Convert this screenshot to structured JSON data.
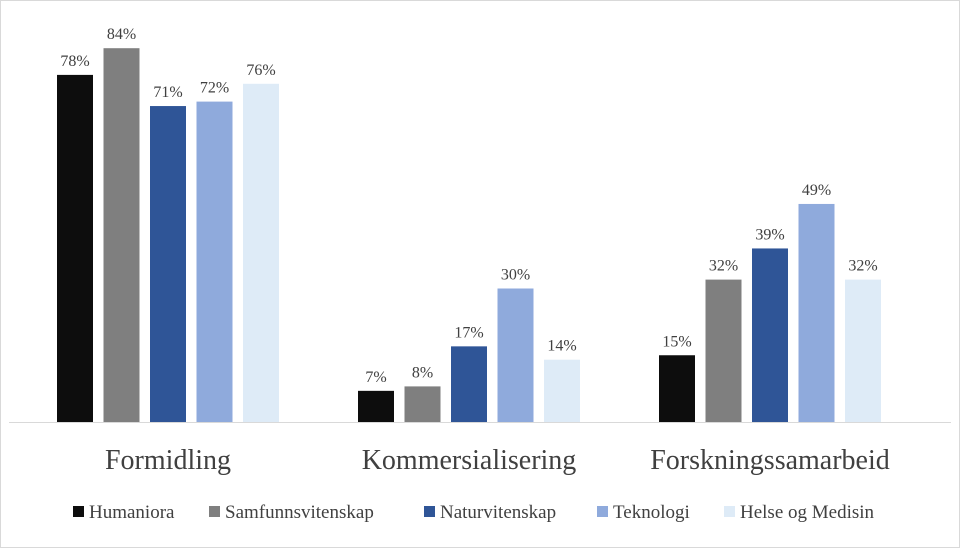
{
  "chart_data": {
    "type": "bar",
    "categories": [
      "Formidling",
      "Kommersialisering",
      "Forskningssamarbeid"
    ],
    "series": [
      {
        "name": "Humaniora",
        "values": [
          78,
          7,
          15
        ],
        "color": "#0d0d0d"
      },
      {
        "name": "Samfunnsvitenskap",
        "values": [
          84,
          8,
          32
        ],
        "color": "#7f7f7f"
      },
      {
        "name": "Naturvitenskap",
        "values": [
          71,
          17,
          39
        ],
        "color": "#2f5597"
      },
      {
        "name": "Teknologi",
        "values": [
          72,
          30,
          49
        ],
        "color": "#8faadc"
      },
      {
        "name": "Helse og Medisin",
        "values": [
          76,
          14,
          32
        ],
        "color": "#deebf7"
      }
    ],
    "value_suffix": "%",
    "ylim": [
      0,
      100
    ],
    "grid": false,
    "legend_position": "bottom",
    "title": "",
    "xlabel": "",
    "ylabel": ""
  }
}
